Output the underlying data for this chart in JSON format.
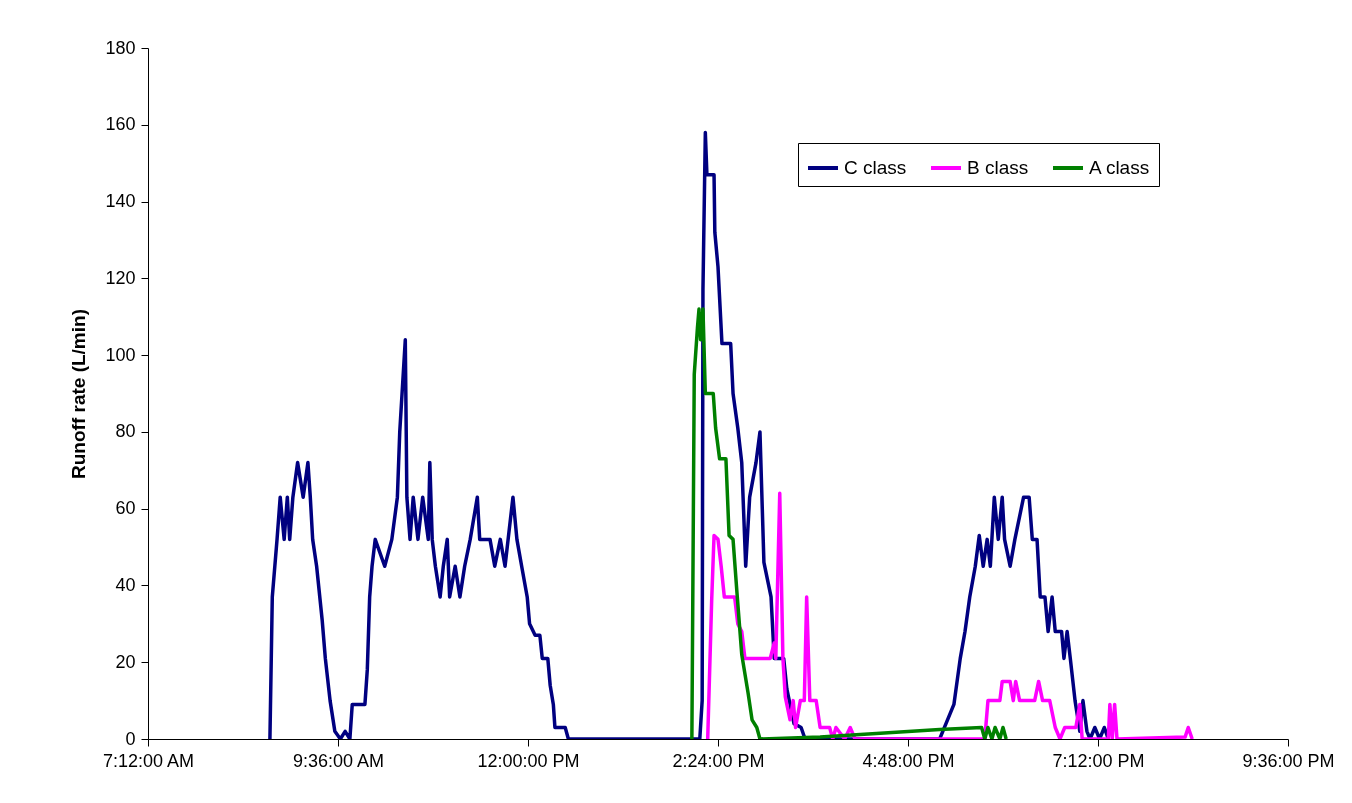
{
  "chart_data": {
    "type": "line",
    "ylabel": "Runoff rate (L/min)",
    "xlim": [
      7.2,
      21.6
    ],
    "xticks": [
      {
        "value": 7.2,
        "label": "7:12:00 AM"
      },
      {
        "value": 9.6,
        "label": "9:36:00 AM"
      },
      {
        "value": 12,
        "label": "12:00:00 PM"
      },
      {
        "value": 14.4,
        "label": "2:24:00 PM"
      },
      {
        "value": 16.8,
        "label": "4:48:00 PM"
      },
      {
        "value": 19.2,
        "label": "7:12:00 PM"
      },
      {
        "value": 21.6,
        "label": "9:36:00 PM"
      }
    ],
    "ylim": [
      0,
      180
    ],
    "yticks": [
      0,
      20,
      40,
      60,
      80,
      100,
      120,
      140,
      160,
      180
    ],
    "grid": false,
    "legend": "top right",
    "series": [
      {
        "name": "C class",
        "color": "#000080",
        "x": [
          8.74,
          8.77,
          8.83,
          8.87,
          8.92,
          8.96,
          8.99,
          9.03,
          9.09,
          9.16,
          9.22,
          9.25,
          9.28,
          9.33,
          9.4,
          9.44,
          9.5,
          9.56,
          9.63,
          9.69,
          9.75,
          9.78,
          9.94,
          9.97,
          10.0,
          10.03,
          10.07,
          10.19,
          10.28,
          10.35,
          10.38,
          10.45,
          10.47,
          10.51,
          10.55,
          10.61,
          10.67,
          10.74,
          10.76,
          10.79,
          10.83,
          10.89,
          10.93,
          10.98,
          11.01,
          11.08,
          11.14,
          11.2,
          11.27,
          11.36,
          11.39,
          11.52,
          11.58,
          11.65,
          11.71,
          11.81,
          11.86,
          11.92,
          11.99,
          12.02,
          12.09,
          12.15,
          12.18,
          12.25,
          12.28,
          12.32,
          12.34,
          12.47,
          12.51,
          14.17,
          14.2,
          14.21,
          14.24,
          14.26,
          14.35,
          14.36,
          14.4,
          14.45,
          14.56,
          14.59,
          14.65,
          14.7,
          14.75,
          14.8,
          14.88,
          14.93,
          14.98,
          15.07,
          15.11,
          15.23,
          15.27,
          15.36,
          15.45,
          15.5,
          17.2,
          17.38,
          17.46,
          17.52,
          17.58,
          17.65,
          17.7,
          17.75,
          17.8,
          17.84,
          17.89,
          17.94,
          17.99,
          18.02,
          18.09,
          18.15,
          18.26,
          18.33,
          18.37,
          18.43,
          18.47,
          18.53,
          18.57,
          18.62,
          18.66,
          18.74,
          18.77,
          18.81,
          18.85,
          18.91,
          18.97,
          19.01,
          19.06,
          19.1,
          19.16,
          19.22,
          19.28,
          19.33
        ],
        "values": [
          0,
          37,
          52,
          63,
          52,
          63,
          52,
          63,
          72,
          63,
          72,
          63,
          52,
          45,
          31,
          21,
          10,
          2,
          0,
          2,
          0,
          9,
          9,
          18,
          37,
          45,
          52,
          45,
          52,
          63,
          80,
          104,
          63,
          52,
          63,
          52,
          63,
          52,
          72,
          52,
          45,
          37,
          45,
          52,
          37,
          45,
          37,
          45,
          52,
          63,
          52,
          52,
          45,
          52,
          45,
          63,
          52,
          45,
          37,
          30,
          27,
          27,
          21,
          21,
          14,
          9,
          3,
          3,
          0,
          0,
          10,
          117,
          158,
          147,
          147,
          132,
          123,
          103,
          103,
          90,
          81,
          72,
          45,
          63,
          72,
          80,
          46,
          37,
          21,
          21,
          13,
          4,
          3,
          0,
          0,
          9,
          21,
          28,
          37,
          45,
          53,
          45,
          52,
          45,
          63,
          52,
          63,
          52,
          45,
          52,
          63,
          63,
          52,
          52,
          37,
          37,
          28,
          37,
          28,
          28,
          21,
          28,
          21,
          10,
          2,
          10,
          2,
          0,
          3,
          0,
          3,
          0
        ]
      },
      {
        "name": "B class",
        "color": "#ff00ff",
        "x": [
          14.27,
          14.32,
          14.35,
          14.4,
          14.44,
          14.48,
          14.61,
          14.65,
          14.7,
          14.74,
          15.06,
          15.11,
          15.13,
          15.18,
          15.22,
          15.25,
          15.31,
          15.35,
          15.38,
          15.44,
          15.49,
          15.52,
          15.56,
          15.64,
          15.69,
          15.81,
          15.85,
          15.89,
          16.0,
          16.07,
          16.13,
          17.77,
          17.81,
          17.96,
          17.99,
          18.09,
          18.13,
          18.16,
          18.21,
          18.4,
          18.45,
          18.5,
          18.59,
          18.66,
          18.72,
          18.78,
          18.92,
          18.97,
          19.0,
          19.33,
          19.35,
          19.38,
          19.41,
          19.44,
          20.3,
          20.34,
          20.39
        ],
        "values": [
          0,
          36,
          53,
          52,
          45,
          37,
          37,
          30,
          28,
          21,
          21,
          25,
          21,
          64,
          21,
          11,
          5,
          10,
          3,
          10,
          10,
          37,
          10,
          10,
          3,
          3,
          0,
          3,
          0,
          3,
          0,
          0,
          10,
          10,
          15,
          15,
          10,
          15,
          10,
          10,
          15,
          10,
          10,
          3,
          0,
          3,
          3,
          9,
          0,
          0,
          9,
          0,
          9,
          0,
          0.5,
          3,
          0
        ]
      },
      {
        "name": "A class",
        "color": "#008000",
        "x": [
          14.07,
          14.1,
          14.14,
          14.16,
          14.18,
          14.21,
          14.24,
          14.34,
          14.37,
          14.42,
          14.5,
          14.54,
          14.59,
          14.64,
          14.7,
          14.78,
          14.83,
          14.89,
          14.93,
          15.69,
          16.45,
          17.2,
          17.73,
          17.77,
          17.81,
          17.86,
          17.9,
          17.96,
          18.0,
          18.04
        ],
        "values": [
          0,
          95,
          107,
          112,
          104,
          112,
          90,
          90,
          81,
          73,
          73,
          53,
          52,
          38,
          22,
          12,
          5,
          3,
          0,
          0.5,
          1.5,
          2.5,
          3,
          0,
          3,
          0,
          3,
          0,
          3,
          0
        ]
      }
    ]
  }
}
